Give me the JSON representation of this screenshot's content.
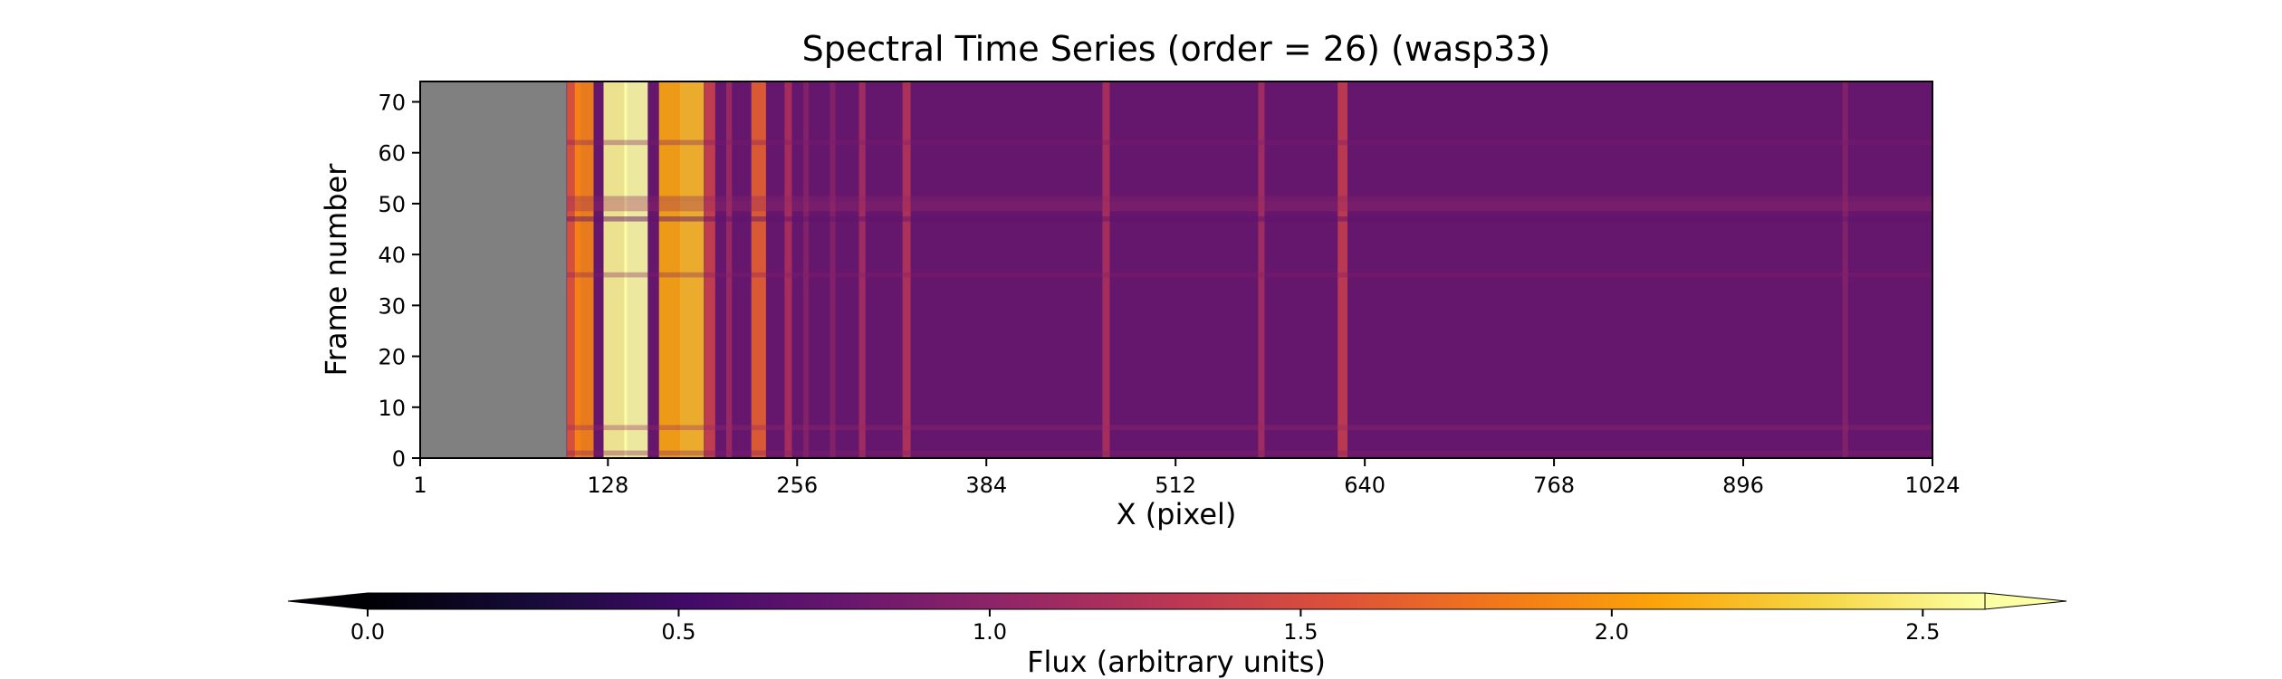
{
  "chart_data": {
    "type": "heatmap",
    "title": "Spectral Time Series (order = 26) (wasp33)",
    "xlabel": "X (pixel)",
    "ylabel": "Frame number",
    "xlim": [
      1,
      1024
    ],
    "ylim": [
      0,
      74
    ],
    "x_ticks": [
      1,
      128,
      256,
      384,
      512,
      640,
      768,
      896,
      1024
    ],
    "y_ticks": [
      0,
      10,
      20,
      30,
      40,
      50,
      60,
      70
    ],
    "colormap": "inferno",
    "masked_color": "#808080",
    "masked_x_range": [
      1,
      100
    ],
    "n_frames": 74,
    "colorbar": {
      "label": "Flux (arbitrary units)",
      "range": [
        0.0,
        2.6
      ],
      "ticks": [
        0.0,
        0.5,
        1.0,
        1.5,
        2.0,
        2.5
      ],
      "extend": "both",
      "extend_under_color": "#000004",
      "extend_over_color": "#fcffa4",
      "orientation": "horizontal"
    },
    "baseline_flux": 0.75,
    "spectral_features": [
      {
        "x": 105,
        "flux": 1.6
      },
      {
        "x": 112,
        "flux": 1.9
      },
      {
        "x": 133,
        "flux": 2.55
      },
      {
        "x": 147,
        "flux": 2.6
      },
      {
        "x": 170,
        "flux": 2.1
      },
      {
        "x": 185,
        "flux": 2.2
      },
      {
        "x": 197,
        "flux": 1.4
      },
      {
        "x": 210,
        "flux": 1.1
      },
      {
        "x": 230,
        "flux": 1.65
      },
      {
        "x": 250,
        "flux": 1.2
      },
      {
        "x": 262,
        "flux": 0.95
      },
      {
        "x": 280,
        "flux": 0.95
      },
      {
        "x": 300,
        "flux": 1.15
      },
      {
        "x": 330,
        "flux": 1.25
      },
      {
        "x": 465,
        "flux": 1.2
      },
      {
        "x": 570,
        "flux": 1.15
      },
      {
        "x": 625,
        "flux": 1.35
      },
      {
        "x": 965,
        "flux": 0.95
      }
    ],
    "frame_features": [
      {
        "frame": 1,
        "flux_offset": 0.15
      },
      {
        "frame": 6,
        "flux_offset": 0.25
      },
      {
        "frame": 36,
        "flux_offset": 0.12
      },
      {
        "frame": 47,
        "flux_offset": -0.08
      },
      {
        "frame": 49,
        "flux_offset": 0.3
      },
      {
        "frame": 50,
        "flux_offset": 0.3
      },
      {
        "frame": 51,
        "flux_offset": 0.2
      },
      {
        "frame": 62,
        "flux_offset": 0.1
      }
    ]
  }
}
